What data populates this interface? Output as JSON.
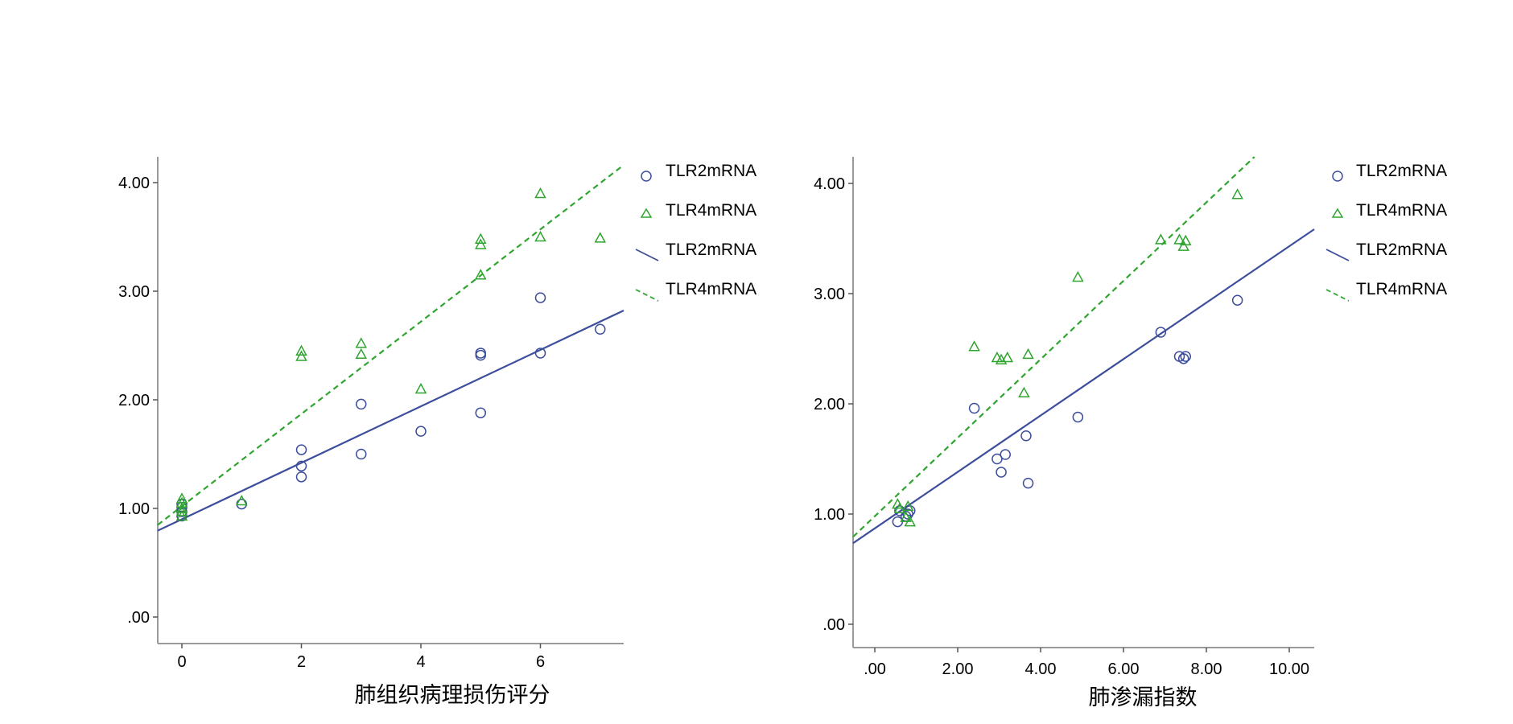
{
  "chart_data": [
    {
      "type": "scatter",
      "xlabel": "肺组织病理损伤评分",
      "ylabel": "",
      "xlim": [
        -0.4,
        7.4
      ],
      "ylim": [
        -0.25,
        4.25
      ],
      "x_ticks": [
        0,
        2,
        4,
        6
      ],
      "x_tick_labels": [
        "0",
        "2",
        "4",
        "6"
      ],
      "y_ticks": [
        0,
        1,
        2,
        3,
        4
      ],
      "y_tick_labels": [
        ".00",
        "1.00",
        "2.00",
        "3.00",
        "4.00"
      ],
      "legend_position": "right",
      "legend": [
        {
          "label": "TLR2mRNA",
          "marker": "circle",
          "color": "#3d4e9c"
        },
        {
          "label": "TLR4mRNA",
          "marker": "triangle",
          "color": "#2fa52f"
        },
        {
          "label": "TLR2mRNA",
          "marker": "solid-line",
          "color": "#3d4e9c"
        },
        {
          "label": "TLR4mRNA",
          "marker": "dashed-line",
          "color": "#2fa52f"
        }
      ],
      "series": [
        {
          "name": "TLR2mRNA",
          "marker": "circle",
          "color": "#3d4e9c",
          "points": [
            [
              0,
              0.93
            ],
            [
              0,
              0.97
            ],
            [
              0,
              1.01
            ],
            [
              0,
              1.04
            ],
            [
              1,
              1.04
            ],
            [
              2,
              1.29
            ],
            [
              2,
              1.39
            ],
            [
              2,
              1.54
            ],
            [
              3,
              1.5
            ],
            [
              3,
              1.96
            ],
            [
              4,
              1.71
            ],
            [
              5,
              1.88
            ],
            [
              5,
              2.41
            ],
            [
              5,
              2.43
            ],
            [
              6,
              2.43
            ],
            [
              6,
              2.94
            ],
            [
              7,
              2.65
            ]
          ]
        },
        {
          "name": "TLR4mRNA",
          "marker": "triangle",
          "color": "#2fa52f",
          "points": [
            [
              0,
              0.93
            ],
            [
              0,
              0.97
            ],
            [
              0,
              1.0
            ],
            [
              0,
              1.05
            ],
            [
              0,
              1.09
            ],
            [
              1,
              1.07
            ],
            [
              2,
              2.4
            ],
            [
              2,
              2.45
            ],
            [
              3,
              2.42
            ],
            [
              3,
              2.52
            ],
            [
              4,
              2.1
            ],
            [
              5,
              3.15
            ],
            [
              5,
              3.43
            ],
            [
              5,
              3.48
            ],
            [
              6,
              3.5
            ],
            [
              6,
              3.9
            ],
            [
              7,
              3.49
            ]
          ]
        }
      ],
      "fit_lines": [
        {
          "name": "TLR2mRNA",
          "style": "solid",
          "color": "#3d4e9c",
          "intercept": 0.9,
          "slope": 0.26
        },
        {
          "name": "TLR4mRNA",
          "style": "dashed",
          "color": "#2fa52f",
          "intercept": 1.02,
          "slope": 0.425
        }
      ]
    },
    {
      "type": "scatter",
      "xlabel": "肺渗漏指数",
      "ylabel": "",
      "xlim": [
        -0.6,
        10.6
      ],
      "ylim": [
        -0.25,
        4.25
      ],
      "x_ticks": [
        0,
        2,
        4,
        6,
        8,
        10
      ],
      "x_tick_labels": [
        ".00",
        "2.00",
        "4.00",
        "6.00",
        "8.00",
        "10.00"
      ],
      "y_ticks": [
        0,
        1,
        2,
        3,
        4
      ],
      "y_tick_labels": [
        ".00",
        "1.00",
        "2.00",
        "3.00",
        "4.00"
      ],
      "legend_position": "right",
      "legend": [
        {
          "label": "TLR2mRNA",
          "marker": "circle",
          "color": "#3d4e9c"
        },
        {
          "label": "TLR4mRNA",
          "marker": "triangle",
          "color": "#2fa52f"
        },
        {
          "label": "TLR2mRNA",
          "marker": "solid-line",
          "color": "#3d4e9c"
        },
        {
          "label": "TLR4mRNA",
          "marker": "dashed-line",
          "color": "#2fa52f"
        }
      ],
      "series": [
        {
          "name": "TLR2mRNA",
          "marker": "circle",
          "color": "#3d4e9c",
          "points": [
            [
              0.55,
              0.93
            ],
            [
              0.6,
              1.03
            ],
            [
              0.75,
              0.98
            ],
            [
              0.8,
              1.0
            ],
            [
              0.85,
              1.03
            ],
            [
              2.4,
              1.96
            ],
            [
              2.95,
              1.5
            ],
            [
              3.05,
              1.38
            ],
            [
              3.15,
              1.54
            ],
            [
              3.65,
              1.71
            ],
            [
              3.7,
              1.28
            ],
            [
              4.9,
              1.88
            ],
            [
              6.9,
              2.65
            ],
            [
              7.35,
              2.43
            ],
            [
              7.45,
              2.41
            ],
            [
              7.5,
              2.43
            ],
            [
              8.75,
              2.94
            ]
          ]
        },
        {
          "name": "TLR4mRNA",
          "marker": "triangle",
          "color": "#2fa52f",
          "points": [
            [
              0.55,
              1.09
            ],
            [
              0.6,
              1.05
            ],
            [
              0.75,
              0.97
            ],
            [
              0.8,
              1.07
            ],
            [
              0.85,
              0.93
            ],
            [
              2.4,
              2.52
            ],
            [
              2.95,
              2.42
            ],
            [
              3.05,
              2.4
            ],
            [
              3.2,
              2.42
            ],
            [
              3.6,
              2.1
            ],
            [
              3.7,
              2.45
            ],
            [
              4.9,
              3.15
            ],
            [
              6.9,
              3.49
            ],
            [
              7.35,
              3.49
            ],
            [
              7.45,
              3.43
            ],
            [
              7.5,
              3.48
            ],
            [
              8.75,
              3.9
            ]
          ]
        }
      ],
      "fit_lines": [
        {
          "name": "TLR2mRNA",
          "style": "solid",
          "color": "#3d4e9c",
          "intercept": 0.87,
          "slope": 0.256
        },
        {
          "name": "TLR4mRNA",
          "style": "dashed",
          "color": "#2fa52f",
          "intercept": 0.98,
          "slope": 0.356
        }
      ]
    }
  ]
}
